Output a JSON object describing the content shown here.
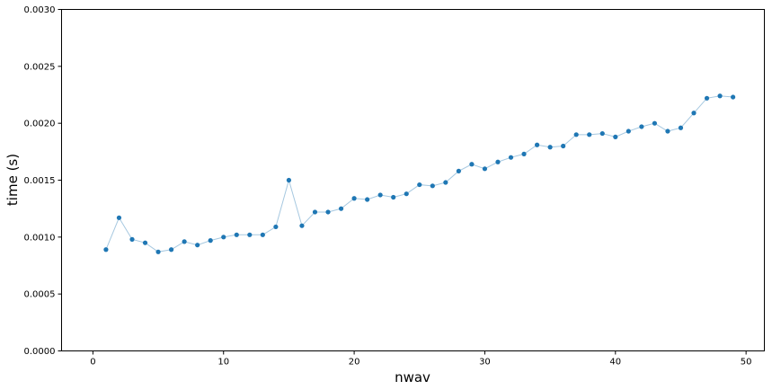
{
  "chart_data": {
    "type": "line",
    "title": "",
    "xlabel": "nwav",
    "ylabel": "time (s)",
    "xlim": [
      -2.4,
      51.4
    ],
    "ylim": [
      0,
      0.003
    ],
    "x_ticks": [
      0,
      10,
      20,
      30,
      40,
      50
    ],
    "x_tick_labels": [
      "0",
      "10",
      "20",
      "30",
      "40",
      "50"
    ],
    "y_ticks": [
      0,
      0.0005,
      0.001,
      0.0015,
      0.002,
      0.0025,
      0.003
    ],
    "y_tick_labels": [
      "0.0000",
      "0.0005",
      "0.0010",
      "0.0015",
      "0.0020",
      "0.0025",
      "0.0030"
    ],
    "grid": false,
    "legend": "none",
    "series": [
      {
        "color": "#1f77b4",
        "line_color": "#a6c8e0",
        "marker": "circle",
        "x": [
          1,
          2,
          3,
          4,
          5,
          6,
          7,
          8,
          9,
          10,
          11,
          12,
          13,
          14,
          15,
          16,
          17,
          18,
          19,
          20,
          21,
          22,
          23,
          24,
          25,
          26,
          27,
          28,
          29,
          30,
          31,
          32,
          33,
          34,
          35,
          36,
          37,
          38,
          39,
          40,
          41,
          42,
          43,
          44,
          45,
          46,
          47,
          48,
          49
        ],
        "y": [
          0.00089,
          0.00117,
          0.00098,
          0.00095,
          0.00087,
          0.00089,
          0.00096,
          0.00093,
          0.00097,
          0.001,
          0.00102,
          0.00102,
          0.00102,
          0.00109,
          0.0015,
          0.0011,
          0.00122,
          0.00122,
          0.00125,
          0.00134,
          0.00133,
          0.00137,
          0.00135,
          0.00138,
          0.00146,
          0.00145,
          0.00148,
          0.00158,
          0.00164,
          0.0016,
          0.00166,
          0.0017,
          0.00173,
          0.00181,
          0.00179,
          0.0018,
          0.0019,
          0.0019,
          0.00191,
          0.00188,
          0.00193,
          0.00197,
          0.002,
          0.00193,
          0.00196,
          0.00209,
          0.00222,
          0.00224,
          0.00223
        ]
      }
    ]
  }
}
